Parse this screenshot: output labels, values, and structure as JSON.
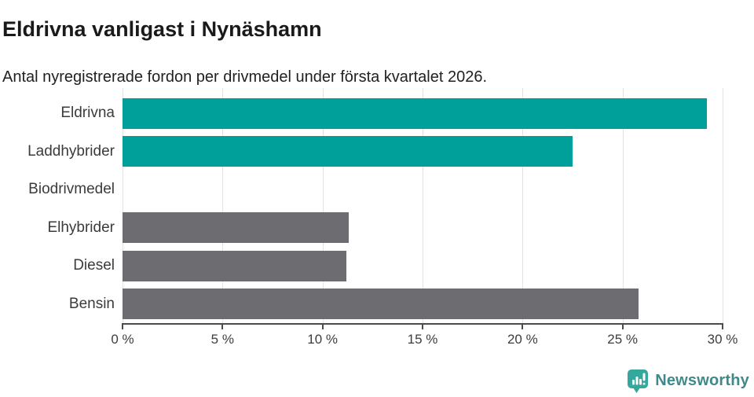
{
  "header": {
    "title": "Eldrivna vanligast i Nynäshamn",
    "subtitle": "Antal nyregistrerade fordon per drivmedel under första kvartalet 2026."
  },
  "chart_data": {
    "type": "bar",
    "orientation": "horizontal",
    "title": "Eldrivna vanligast i Nynäshamn",
    "subtitle": "Antal nyregistrerade fordon per drivmedel under första kvartalet 2026.",
    "categories": [
      "Eldrivna",
      "Laddhybrider",
      "Biodrivmedel",
      "Elhybrider",
      "Diesel",
      "Bensin"
    ],
    "values": [
      29.2,
      22.5,
      0,
      11.3,
      11.2,
      25.8
    ],
    "unit": "%",
    "bar_colors": [
      "#00a09a",
      "#00a09a",
      "#6d6c71",
      "#6d6c71",
      "#6d6c71",
      "#6d6c71"
    ],
    "highlight_color": "#00a09a",
    "default_color": "#6d6c71",
    "xlim": [
      0,
      30
    ],
    "x_ticks": [
      0,
      5,
      10,
      15,
      20,
      25,
      30
    ],
    "x_tick_labels": [
      "0 %",
      "5 %",
      "10 %",
      "15 %",
      "20 %",
      "25 %",
      "30 %"
    ],
    "grid": "vertical",
    "gridline_color": "#e3e3e3",
    "legend": "none"
  },
  "footer": {
    "brand": "Newsworthy",
    "brand_color": "#40898b",
    "icon": "newsworthy-speech-bubble-bar-chart-icon",
    "icon_color": "#35a79e"
  }
}
